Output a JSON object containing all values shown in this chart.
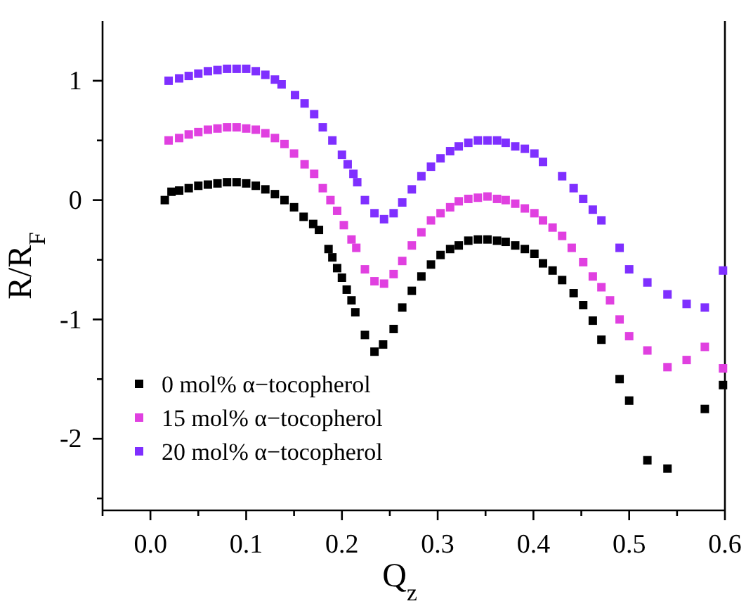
{
  "chart_data": {
    "type": "scatter",
    "xlabel": "Q$_{z}$",
    "ylabel": "R/R$_{F}$",
    "marker": "square",
    "legend": "bottom left",
    "grid": false,
    "xlim": [
      -0.05,
      0.6
    ],
    "ylim": [
      -2.6,
      1.5
    ],
    "xticks": [
      {
        "value": -0.05,
        "label": null
      },
      {
        "value": 0,
        "label": "0.0"
      },
      {
        "value": 0.05,
        "label": null
      },
      {
        "value": 0.1,
        "label": "0.1"
      },
      {
        "value": 0.15,
        "label": null
      },
      {
        "value": 0.2,
        "label": "0.2"
      },
      {
        "value": 0.25,
        "label": null
      },
      {
        "value": 0.3,
        "label": "0.3"
      },
      {
        "value": 0.35,
        "label": null
      },
      {
        "value": 0.4,
        "label": "0.4"
      },
      {
        "value": 0.45,
        "label": null
      },
      {
        "value": 0.5,
        "label": "0.5"
      },
      {
        "value": 0.55,
        "label": null
      },
      {
        "value": 0.6,
        "label": "0.6"
      }
    ],
    "yticks": [
      {
        "value": -2.5,
        "label": null
      },
      -2,
      {
        "value": -1.5,
        "label": null
      },
      -1,
      {
        "value": -0.5,
        "label": null
      },
      0,
      {
        "value": 0.5,
        "label": null
      },
      1
    ],
    "series": [
      {
        "name": "0 mol% α−tocopherol",
        "color": "#000000",
        "x": [
          0.015,
          0.022,
          0.03,
          0.04,
          0.05,
          0.06,
          0.07,
          0.08,
          0.09,
          0.1,
          0.11,
          0.12,
          0.13,
          0.14,
          0.15,
          0.16,
          0.17,
          0.176,
          0.186,
          0.19,
          0.195,
          0.2,
          0.205,
          0.21,
          0.214,
          0.224,
          0.234,
          0.243,
          0.254,
          0.263,
          0.273,
          0.283,
          0.293,
          0.303,
          0.313,
          0.322,
          0.332,
          0.342,
          0.352,
          0.362,
          0.371,
          0.381,
          0.391,
          0.401,
          0.41,
          0.42,
          0.43,
          0.442,
          0.452,
          0.462,
          0.471,
          0.49,
          0.5,
          0.519,
          0.54,
          0.579,
          0.598
        ],
        "values": [
          0,
          0.07,
          0.08,
          0.1,
          0.12,
          0.13,
          0.14,
          0.15,
          0.15,
          0.14,
          0.12,
          0.09,
          0.05,
          0,
          -0.06,
          -0.14,
          -0.2,
          -0.25,
          -0.41,
          -0.48,
          -0.57,
          -0.65,
          -0.75,
          -0.84,
          -0.94,
          -1.13,
          -1.27,
          -1.21,
          -1.08,
          -0.9,
          -0.76,
          -0.64,
          -0.54,
          -0.46,
          -0.41,
          -0.38,
          -0.34,
          -0.33,
          -0.33,
          -0.34,
          -0.35,
          -0.38,
          -0.41,
          -0.45,
          -0.53,
          -0.59,
          -0.67,
          -0.78,
          -0.88,
          -1.01,
          -1.17,
          -1.5,
          -1.68,
          -2.18,
          -2.25,
          -1.75,
          -1.55
        ]
      },
      {
        "name": "15 mol% α−tocopherol",
        "color": "#e040e0",
        "x": [
          0.019,
          0.03,
          0.04,
          0.05,
          0.06,
          0.07,
          0.08,
          0.09,
          0.1,
          0.11,
          0.12,
          0.13,
          0.14,
          0.15,
          0.161,
          0.171,
          0.18,
          0.188,
          0.195,
          0.202,
          0.21,
          0.215,
          0.224,
          0.234,
          0.244,
          0.254,
          0.263,
          0.273,
          0.283,
          0.293,
          0.303,
          0.313,
          0.322,
          0.332,
          0.342,
          0.352,
          0.362,
          0.371,
          0.381,
          0.391,
          0.401,
          0.41,
          0.42,
          0.43,
          0.44,
          0.452,
          0.462,
          0.471,
          0.48,
          0.49,
          0.5,
          0.519,
          0.54,
          0.56,
          0.579,
          0.598
        ],
        "values": [
          0.5,
          0.52,
          0.55,
          0.57,
          0.59,
          0.6,
          0.61,
          0.61,
          0.6,
          0.59,
          0.56,
          0.52,
          0.47,
          0.39,
          0.3,
          0.22,
          0.1,
          0,
          -0.09,
          -0.21,
          -0.33,
          -0.4,
          -0.58,
          -0.68,
          -0.7,
          -0.62,
          -0.51,
          -0.38,
          -0.27,
          -0.17,
          -0.11,
          -0.06,
          -0.01,
          0.01,
          0.02,
          0.03,
          0.01,
          0,
          -0.03,
          -0.07,
          -0.11,
          -0.17,
          -0.23,
          -0.3,
          -0.4,
          -0.52,
          -0.64,
          -0.73,
          -0.84,
          -1,
          -1.14,
          -1.26,
          -1.4,
          -1.34,
          -1.23,
          -1.41
        ]
      },
      {
        "name": "20 mol% α−tocopherol",
        "color": "#7f2fff",
        "x": [
          0.019,
          0.03,
          0.04,
          0.05,
          0.06,
          0.07,
          0.08,
          0.09,
          0.1,
          0.11,
          0.12,
          0.13,
          0.137,
          0.151,
          0.161,
          0.171,
          0.18,
          0.19,
          0.2,
          0.206,
          0.212,
          0.216,
          0.224,
          0.234,
          0.244,
          0.254,
          0.263,
          0.273,
          0.283,
          0.293,
          0.303,
          0.313,
          0.322,
          0.332,
          0.342,
          0.352,
          0.362,
          0.371,
          0.381,
          0.391,
          0.401,
          0.41,
          0.43,
          0.442,
          0.452,
          0.462,
          0.471,
          0.49,
          0.5,
          0.519,
          0.54,
          0.56,
          0.579,
          0.598
        ],
        "values": [
          1,
          1.02,
          1.04,
          1.06,
          1.08,
          1.09,
          1.1,
          1.1,
          1.1,
          1.08,
          1.05,
          1.01,
          0.97,
          0.88,
          0.81,
          0.72,
          0.61,
          0.5,
          0.38,
          0.3,
          0.22,
          0.15,
          0,
          -0.11,
          -0.16,
          -0.11,
          -0.02,
          0.09,
          0.2,
          0.28,
          0.35,
          0.41,
          0.45,
          0.48,
          0.5,
          0.5,
          0.5,
          0.48,
          0.45,
          0.43,
          0.39,
          0.32,
          0.2,
          0.1,
          0.01,
          -0.08,
          -0.17,
          -0.4,
          -0.58,
          -0.69,
          -0.79,
          -0.87,
          -0.9,
          -0.59
        ]
      }
    ]
  }
}
